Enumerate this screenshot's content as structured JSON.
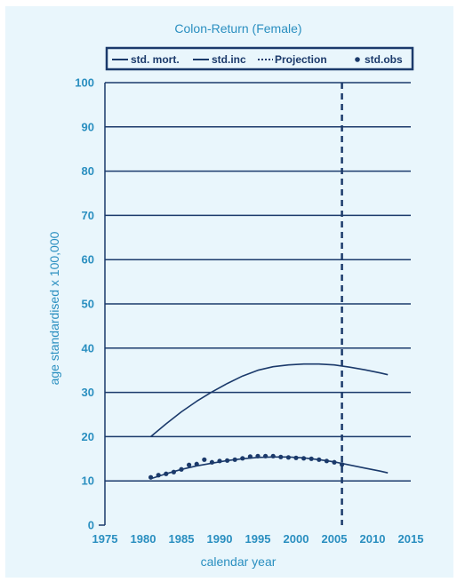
{
  "chart_data": {
    "type": "line",
    "title": "Colon-Return (Female)",
    "xlabel": "calendar year",
    "ylabel": "age standardised x 100,000",
    "xlim": [
      1975,
      2015
    ],
    "ylim": [
      0,
      100
    ],
    "x_ticks": [
      1975,
      1980,
      1985,
      1990,
      1995,
      2000,
      2005,
      2010,
      2015
    ],
    "y_ticks": [
      0,
      10,
      20,
      30,
      40,
      50,
      60,
      70,
      80,
      90,
      100
    ],
    "grid": "horizontal",
    "legend_position": "top",
    "projection_year": 2006,
    "legend": [
      {
        "label": "std. mort.",
        "marker": "solid-line"
      },
      {
        "label": "std.inc",
        "marker": "solid-line"
      },
      {
        "label": "Projection",
        "marker": "dotted-line"
      },
      {
        "label": "std.obs",
        "marker": "dot"
      }
    ],
    "series": [
      {
        "name": "std.inc",
        "style": "solid",
        "x": [
          1981,
          1983,
          1985,
          1987,
          1989,
          1991,
          1993,
          1995,
          1997,
          1999,
          2001,
          2003,
          2005,
          2007,
          2009,
          2011,
          2012
        ],
        "y": [
          20.0,
          22.9,
          25.6,
          28.0,
          30.1,
          32.0,
          33.7,
          35.0,
          35.8,
          36.2,
          36.4,
          36.4,
          36.2,
          35.7,
          35.1,
          34.4,
          34.0
        ]
      },
      {
        "name": "std. mort.",
        "style": "solid",
        "x": [
          1981,
          1983,
          1985,
          1987,
          1989,
          1991,
          1993,
          1995,
          1997,
          1999,
          2001,
          2003,
          2005,
          2007,
          2009,
          2011,
          2012
        ],
        "y": [
          10.5,
          11.6,
          12.6,
          13.4,
          14.0,
          14.6,
          15.0,
          15.3,
          15.4,
          15.4,
          15.2,
          14.8,
          14.3,
          13.6,
          12.9,
          12.2,
          11.8
        ]
      },
      {
        "name": "std.obs",
        "style": "dots",
        "x": [
          1981,
          1982,
          1983,
          1984,
          1985,
          1986,
          1987,
          1988,
          1989,
          1990,
          1991,
          1992,
          1993,
          1994,
          1995,
          1996,
          1997,
          1998,
          1999,
          2000,
          2001,
          2002,
          2003,
          2004,
          2005,
          2006
        ],
        "y": [
          10.8,
          11.3,
          11.6,
          12.0,
          12.6,
          13.6,
          13.8,
          14.8,
          14.2,
          14.5,
          14.6,
          14.8,
          15.1,
          15.5,
          15.6,
          15.6,
          15.6,
          15.4,
          15.3,
          15.2,
          15.1,
          15.0,
          14.8,
          14.5,
          14.2,
          13.7
        ]
      }
    ]
  }
}
